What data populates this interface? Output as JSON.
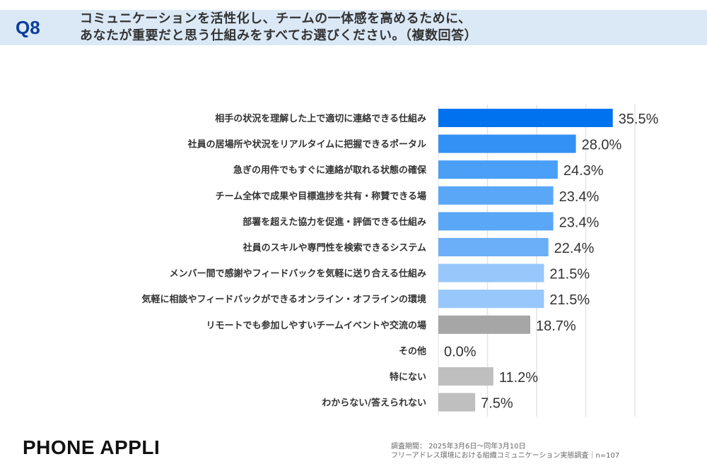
{
  "header": {
    "q": "Q8",
    "line1": "コミュニケーションを活性化し、チームの一体感を高めるために、",
    "line2": "あなたが重要だと思う仕組みをすべてお選びください。（複数回答）"
  },
  "footer": {
    "logo": "PHONE  APPLI",
    "period": "調査期間： 2025年3月6日～同年3月10日",
    "survey": "フリーアドレス環境における組織コミュニケーション実態調査｜n=107"
  },
  "chart_data": {
    "type": "bar",
    "orientation": "horizontal",
    "xlim": [
      0,
      40
    ],
    "grid": true,
    "gridlines": [
      10,
      20,
      30,
      40
    ],
    "categories": [
      "相手の状況を理解した上で適切に連絡できる仕組み",
      "社員の居場所や状況をリアルタイムに把握できるポータル",
      "急ぎの用件でもすぐに連絡が取れる状態の確保",
      "チーム全体で成果や目標進捗を共有・称賛できる場",
      "部署を超えた協力を促進・評価できる仕組み",
      "社員のスキルや専門性を検索できるシステム",
      "メンバー間で感謝やフィードバックを気軽に送り合える仕組み",
      "気軽に相談やフィードバックができるオンライン・オフラインの環境",
      "リモートでも参加しやすいチームイベントや交流の場",
      "その他",
      "特にない",
      "わからない/答えられない"
    ],
    "values": [
      35.5,
      28.0,
      24.3,
      23.4,
      23.4,
      22.4,
      21.5,
      21.5,
      18.7,
      0.0,
      11.2,
      7.5
    ],
    "labels": [
      "35.5%",
      "28.0%",
      "24.3%",
      "23.4%",
      "23.4%",
      "22.4%",
      "21.5%",
      "21.5%",
      "18.7%",
      "0.0%",
      "11.2%",
      "7.5%"
    ],
    "colors": [
      "#0072f0",
      "#3391f5",
      "#4a9ff7",
      "#5aa7f7",
      "#5aa7f7",
      "#6aaff7",
      "#98c7fb",
      "#98c7fb",
      "#a6a6a6",
      "#bfbfbf",
      "#bfbfbf",
      "#bfbfbf"
    ]
  }
}
